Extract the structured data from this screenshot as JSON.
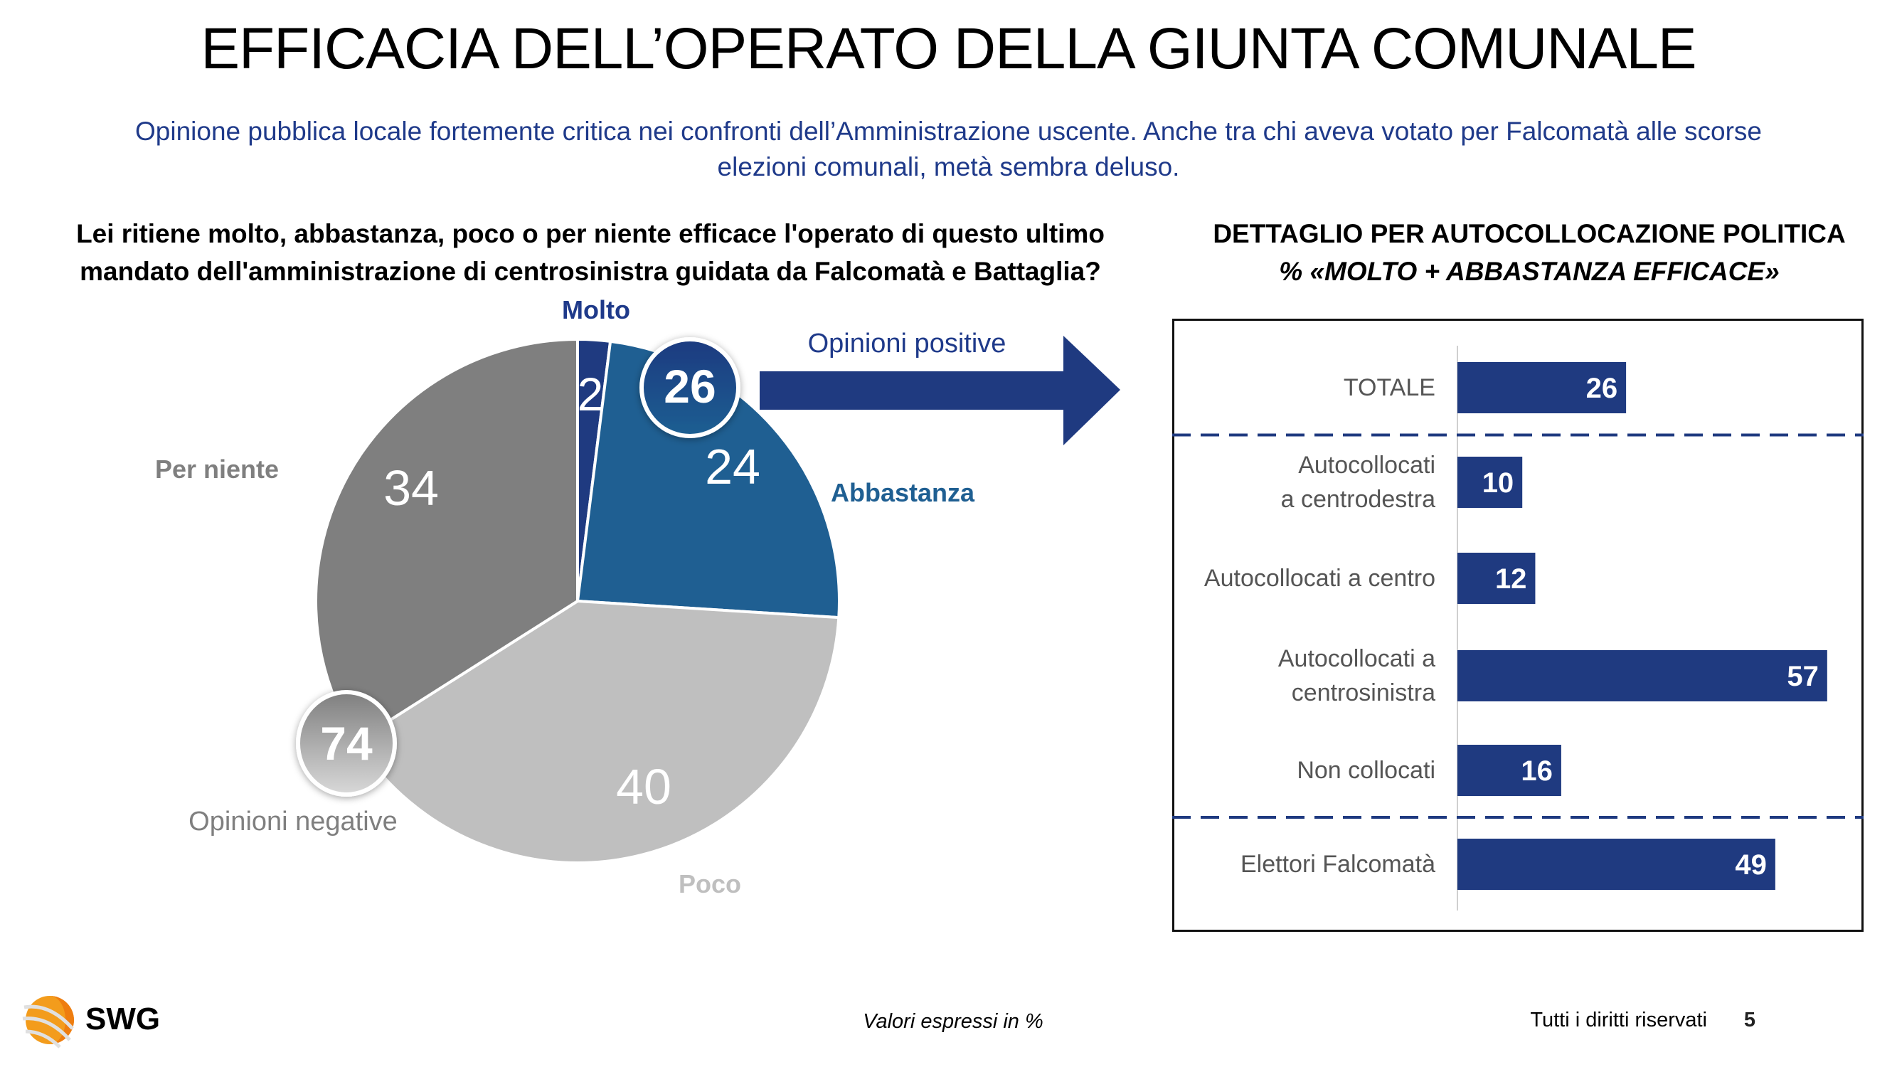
{
  "header": {
    "title": "EFFICACIA DELL’OPERATO DELLA GIUNTA COMUNALE",
    "subtitle_line1": "Opinione pubblica locale fortemente critica nei confronti dell’Amministrazione uscente. Anche tra chi aveva votato per Falcomatà alle scorse",
    "subtitle_line2": "elezioni comunali, metà sembra deluso."
  },
  "question": {
    "line1": "Lei ritiene molto, abbastanza, poco o per niente efficace l'operato di questo ultimo",
    "line2": "mandato dell'amministrazione di centrosinistra guidata da Falcomatà e Battaglia?"
  },
  "detail_header": {
    "line1": "DETTAGLIO PER AUTOCOLLOCAZIONE POLITICA",
    "line2": "% «MOLTO + ABBASTANZA EFFICACE»"
  },
  "colors": {
    "molto": "#1f3a80",
    "abbastanza": "#1f5f92",
    "poco": "#bfbfbf",
    "per_niente": "#7f7f7f",
    "bar": "#1f3a80",
    "navy_text": "#1f3a8a",
    "arrow": "#1f3a80"
  },
  "chart_data": [
    {
      "type": "pie",
      "title": "Lei ritiene molto, abbastanza, poco o per niente efficace l'operato di questo ultimo mandato dell'amministrazione di centrosinistra guidata da Falcomatà e Battaglia?",
      "categories": [
        "Molto",
        "Abbastanza",
        "Poco",
        "Per niente"
      ],
      "values": [
        2,
        24,
        40,
        34
      ],
      "value_labels": [
        "2",
        "24",
        "40",
        "34"
      ],
      "groups": [
        {
          "name": "Opinioni positive",
          "value": 26,
          "label": "26",
          "members": [
            "Molto",
            "Abbastanza"
          ]
        },
        {
          "name": "Opinioni negative",
          "value": 74,
          "label": "74",
          "members": [
            "Poco",
            "Per niente"
          ]
        }
      ],
      "start_angle": "top, clockwise"
    },
    {
      "type": "bar",
      "orientation": "horizontal",
      "title": "DETTAGLIO PER AUTOCOLLOCAZIONE POLITICA — % «MOLTO + ABBASTANZA EFFICACE»",
      "categories": [
        [
          "TOTALE"
        ],
        [
          "Autocollocati",
          "a centrodestra"
        ],
        [
          "Autocollocati a centro"
        ],
        [
          "Autocollocati a",
          "centrosinistra"
        ],
        [
          "Non collocati"
        ],
        [
          "Elettori Falcomatà"
        ]
      ],
      "values": [
        26,
        10,
        12,
        57,
        16,
        49
      ],
      "value_labels": [
        "26",
        "10",
        "12",
        "57",
        "16",
        "49"
      ],
      "separators_after": [
        0,
        4
      ],
      "xlim": [
        0,
        60
      ],
      "grid": false
    }
  ],
  "footer": {
    "logo_text": "SWG",
    "note": "Valori espressi in %",
    "rights": "Tutti i diritti riservati",
    "page": "5"
  }
}
